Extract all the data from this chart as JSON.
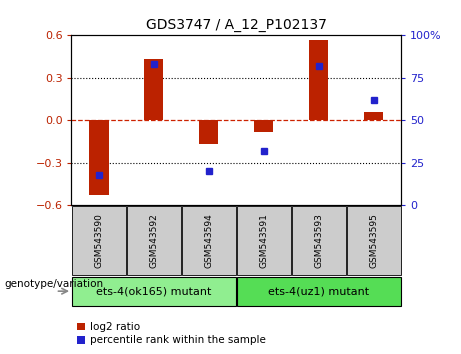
{
  "title": "GDS3747 / A_12_P102137",
  "samples": [
    "GSM543590",
    "GSM543592",
    "GSM543594",
    "GSM543591",
    "GSM543593",
    "GSM543595"
  ],
  "log2_ratio": [
    -0.53,
    0.43,
    -0.17,
    -0.08,
    0.57,
    0.06
  ],
  "percentile_rank": [
    18,
    83,
    20,
    32,
    82,
    62
  ],
  "groups": [
    {
      "label": "ets-4(ok165) mutant",
      "indices": [
        0,
        1,
        2
      ],
      "color": "#90ee90"
    },
    {
      "label": "ets-4(uz1) mutant",
      "indices": [
        3,
        4,
        5
      ],
      "color": "#55dd55"
    }
  ],
  "bar_color": "#bb2200",
  "dot_color": "#2222cc",
  "ylim_left": [
    -0.6,
    0.6
  ],
  "ylim_right": [
    0,
    100
  ],
  "yticks_left": [
    -0.6,
    -0.3,
    0.0,
    0.3,
    0.6
  ],
  "yticks_right": [
    0,
    25,
    50,
    75,
    100
  ],
  "hline_color": "#cc2200",
  "bg_color": "#ffffff",
  "plot_bg": "#ffffff",
  "label_log2": "log2 ratio",
  "label_pct": "percentile rank within the sample",
  "genotype_label": "genotype/variation",
  "sample_bg_color": "#cccccc",
  "bar_width": 0.35
}
